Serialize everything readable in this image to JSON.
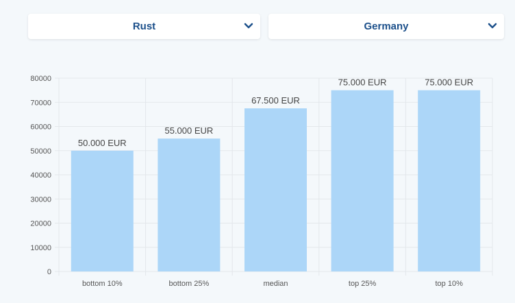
{
  "filters": {
    "language": "Rust",
    "country": "Germany",
    "chevron_icon": "chevron-down-icon"
  },
  "colors": {
    "bar": "#acd6f8",
    "grid": "#e3e7eb",
    "select_text": "#1b4f8a"
  },
  "chart_data": {
    "type": "bar",
    "categories": [
      "bottom 10%",
      "bottom 25%",
      "median",
      "top 25%",
      "top 10%"
    ],
    "values": [
      50000,
      55000,
      67500,
      75000,
      75000
    ],
    "data_labels": [
      "50.000 EUR",
      "55.000 EUR",
      "67.500 EUR",
      "75.000 EUR",
      "75.000 EUR"
    ],
    "y_ticks": [
      0,
      10000,
      20000,
      30000,
      40000,
      50000,
      60000,
      70000,
      80000
    ],
    "ylim": [
      0,
      80000
    ],
    "title": "",
    "xlabel": "",
    "ylabel": "",
    "grid": true,
    "legend": "none"
  }
}
